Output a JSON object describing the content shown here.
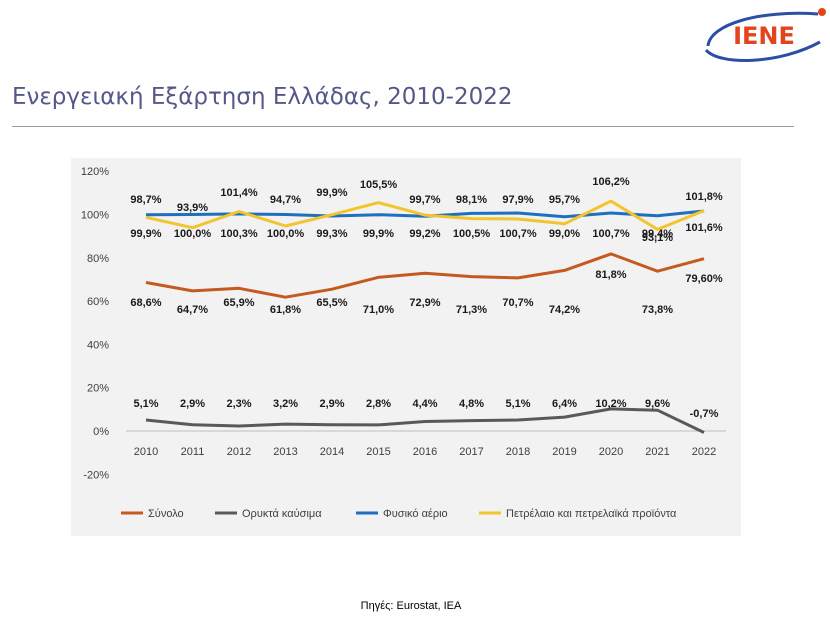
{
  "header": {
    "logo_text": "IENE",
    "title": "Ενεργειακή Εξάρτηση Ελλάδας, 2010-2022"
  },
  "footer": {
    "source": "Πηγές: Eurostat, IEA"
  },
  "colors": {
    "total": "#c55a20",
    "solid": "#595959",
    "gas": "#1f6fbf",
    "oil": "#f2c42e",
    "logo_blue": "#2a4fa3",
    "logo_red": "#e2451c"
  },
  "chart_data": {
    "type": "line",
    "categories": [
      "2010",
      "2011",
      "2012",
      "2013",
      "2014",
      "2015",
      "2016",
      "2017",
      "2018",
      "2019",
      "2020",
      "2021",
      "2022"
    ],
    "y_ticks": [
      "120%",
      "100%",
      "80%",
      "60%",
      "40%",
      "20%",
      "0%",
      "-20%"
    ],
    "ylim": [
      -20,
      120
    ],
    "grid": false,
    "legend_position": "bottom",
    "series": [
      {
        "name": "Σύνολο",
        "key": "total",
        "values": [
          68.6,
          64.7,
          65.9,
          61.8,
          65.5,
          71.0,
          72.9,
          71.3,
          70.7,
          74.2,
          81.8,
          73.8,
          79.6
        ],
        "labels": [
          "68,6%",
          "64,7%",
          "65,9%",
          "61,8%",
          "65,5%",
          "71,0%",
          "72,9%",
          "71,3%",
          "70,7%",
          "74,2%",
          "81,8%",
          "73,8%",
          "79,60%"
        ]
      },
      {
        "name": "Ορυκτά καύσιμα",
        "key": "solid",
        "values": [
          5.1,
          2.9,
          2.3,
          3.2,
          2.9,
          2.8,
          4.4,
          4.8,
          5.1,
          6.4,
          10.2,
          9.6,
          -0.7
        ],
        "labels": [
          "5,1%",
          "2,9%",
          "2,3%",
          "3,2%",
          "2,9%",
          "2,8%",
          "4,4%",
          "4,8%",
          "5,1%",
          "6,4%",
          "10,2%",
          "9,6%",
          "-0,7%"
        ]
      },
      {
        "name": "Φυσικό αέριο",
        "key": "gas",
        "values": [
          99.9,
          100.0,
          100.3,
          100.0,
          99.3,
          99.9,
          99.2,
          100.5,
          100.7,
          99.0,
          100.7,
          99.4,
          101.6
        ],
        "labels": [
          "99,9%",
          "100,0%",
          "100,3%",
          "100,0%",
          "99,3%",
          "99,9%",
          "99,2%",
          "100,5%",
          "100,7%",
          "99,0%",
          "100,7%",
          "99,4%",
          "101,6%"
        ]
      },
      {
        "name": "Πετρέλαιο και πετρελαϊκά προϊόντα",
        "key": "oil",
        "values": [
          98.7,
          93.9,
          101.4,
          94.7,
          99.9,
          105.5,
          99.7,
          98.1,
          97.9,
          95.7,
          106.2,
          93.1,
          101.8
        ],
        "labels": [
          "98,7%",
          "93,9%",
          "101,4%",
          "94,7%",
          "99,9%",
          "105,5%",
          "99,7%",
          "98,1%",
          "97,9%",
          "95,7%",
          "106,2%",
          "93,1%",
          "101,8%"
        ]
      }
    ]
  }
}
